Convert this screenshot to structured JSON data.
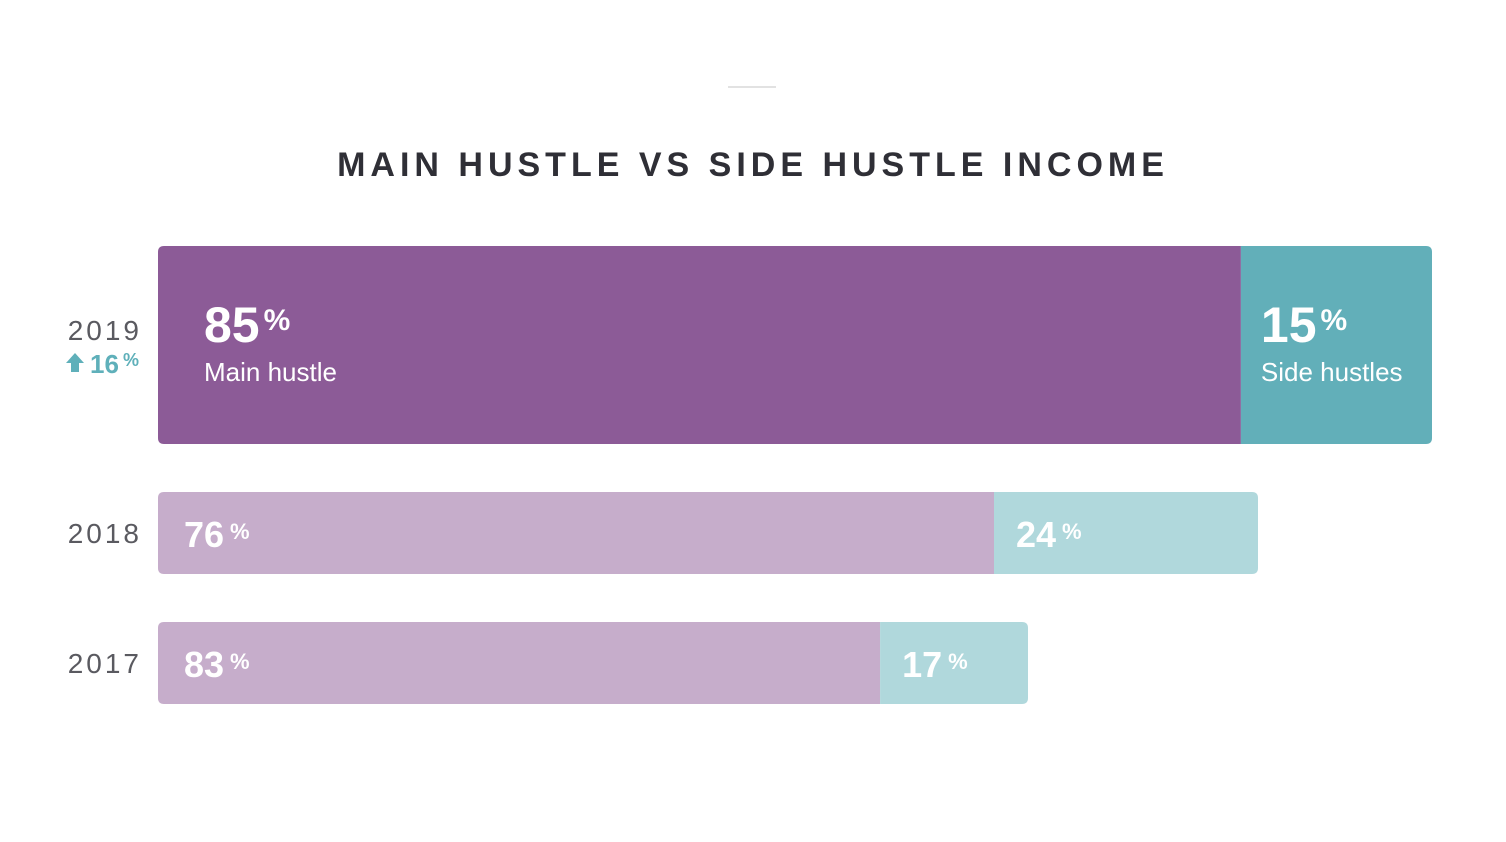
{
  "chart_data": {
    "type": "bar",
    "orientation": "horizontal",
    "stacked": true,
    "title": "MAIN HUSTLE VS SIDE HUSTLE INCOME",
    "unit": "%",
    "categories": [
      "2019",
      "2018",
      "2017"
    ],
    "series": [
      {
        "name": "Main hustle",
        "values": [
          85,
          76,
          83
        ],
        "colors": [
          "#8c5b97",
          "#c6adcb",
          "#c6adcb"
        ]
      },
      {
        "name": "Side hustles",
        "values": [
          15,
          24,
          17
        ],
        "colors": [
          "#62afb9",
          "#b0d8dc",
          "#b0d8dc"
        ]
      }
    ],
    "highlight": {
      "category": "2019",
      "change_value": "16",
      "change_unit": "%",
      "change_icon": "arrow-up-icon",
      "change_color": "#5fb0ba"
    },
    "grid": false,
    "legend": "none"
  }
}
